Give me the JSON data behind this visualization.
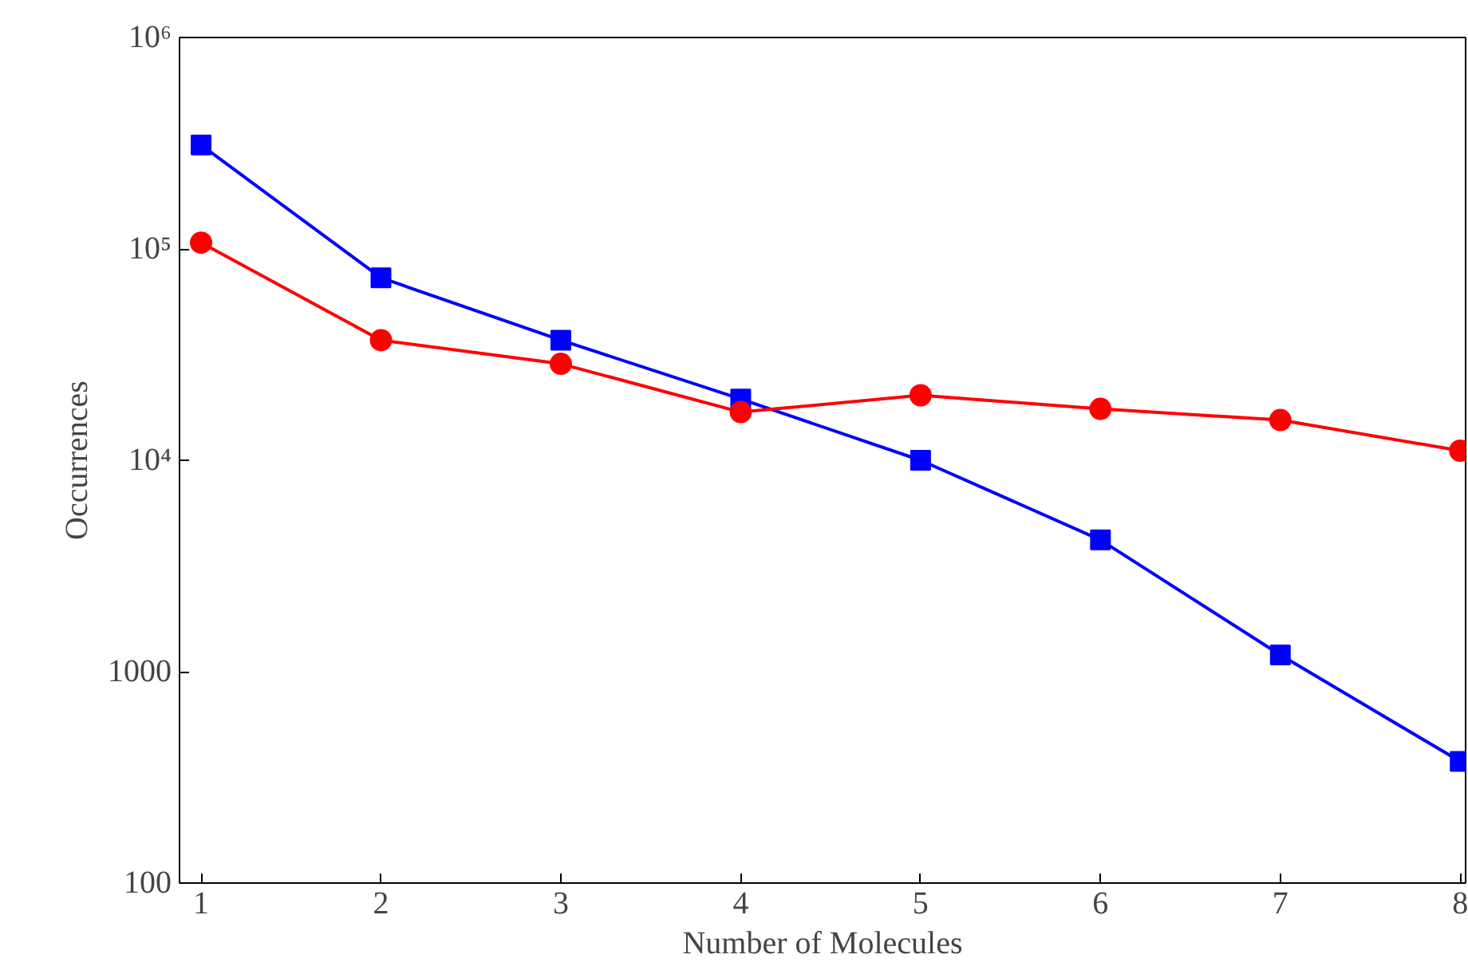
{
  "chart_data": {
    "type": "line",
    "xlabel": "Number of Molecules",
    "ylabel": "Occurrences",
    "x": [
      1,
      2,
      3,
      4,
      5,
      6,
      7,
      8
    ],
    "series": [
      {
        "color": "#0000ff",
        "marker": "square",
        "values": [
          310000,
          73000,
          37000,
          19500,
          10000,
          4200,
          1200,
          376
        ]
      },
      {
        "color": "#ff0000",
        "marker": "circle",
        "values": [
          107000,
          37000,
          28600,
          16900,
          20300,
          17500,
          15500,
          11100
        ]
      }
    ],
    "log": "y",
    "xlim": [
      0.88,
      8.03
    ],
    "ylim": [
      100,
      1000000
    ],
    "xticks": [
      1,
      2,
      3,
      4,
      5,
      6,
      7,
      8
    ],
    "yticks": [
      100,
      1000,
      {
        "value": 10000,
        "label": "10⁴"
      },
      {
        "value": 100000,
        "label": "10⁵"
      },
      {
        "value": 1000000,
        "label": "10⁶"
      }
    ],
    "grid": false,
    "line_style": "solid"
  }
}
